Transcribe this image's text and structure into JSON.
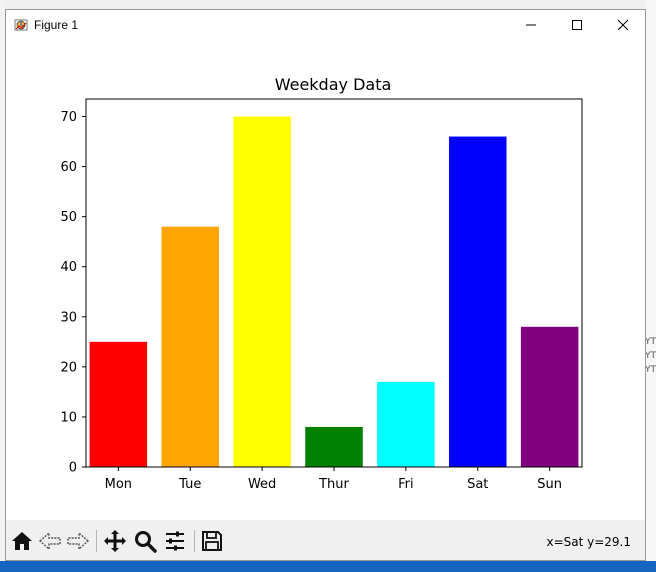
{
  "window": {
    "title": "Figure 1",
    "icon": "matplotlib-figure-icon"
  },
  "background": {
    "side_labels": [
      "YT",
      "YT",
      "YT"
    ]
  },
  "toolbar": {
    "buttons": [
      {
        "name": "home-icon"
      },
      {
        "name": "back-arrow-icon"
      },
      {
        "name": "forward-arrow-icon"
      },
      {
        "name": "pan-move-icon"
      },
      {
        "name": "zoom-magnifier-icon"
      },
      {
        "name": "configure-subplots-icon"
      },
      {
        "name": "save-floppy-icon"
      }
    ],
    "coordinates": "x=Sat y=29.1"
  },
  "chart_data": {
    "type": "bar",
    "title": "Weekday Data",
    "xlabel": "",
    "ylabel": "",
    "categories": [
      "Mon",
      "Tue",
      "Wed",
      "Thur",
      "Fri",
      "Sat",
      "Sun"
    ],
    "values": [
      25,
      48,
      70,
      8,
      17,
      66,
      28
    ],
    "colors": [
      "#ff0000",
      "#ffa500",
      "#ffff00",
      "#008000",
      "#00ffff",
      "#0000ff",
      "#800080"
    ],
    "ylim": [
      0,
      73.5
    ],
    "yticks": [
      0,
      10,
      20,
      30,
      40,
      50,
      60,
      70
    ],
    "grid": false
  }
}
